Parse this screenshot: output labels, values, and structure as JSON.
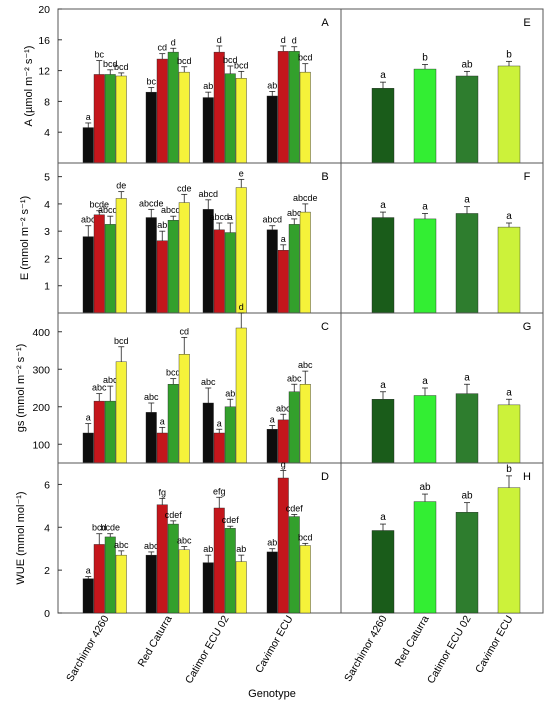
{
  "figure": {
    "xlabel": "Genotype",
    "genotypes": [
      "Sarchimor 4260",
      "Red Caturra",
      "Catimor ECU 02",
      "Cavimor ECU"
    ],
    "treatment_colors": [
      "#0d0d0d",
      "#c4161c",
      "#33a02c",
      "#f5f23a"
    ],
    "genotype_colors": [
      "#1a5c1a",
      "#33ee33",
      "#2e7d2e",
      "#ccf23a"
    ]
  },
  "chart_data": [
    {
      "panel": "A",
      "type": "bar",
      "ylabel": "A (µmol m⁻² s⁻¹)",
      "ylim": [
        0,
        20
      ],
      "yticks": [
        4,
        8,
        12,
        16,
        20
      ],
      "categories": [
        "Sarchimor 4260",
        "Red Caturra",
        "Catimor ECU 02",
        "Cavimor ECU"
      ],
      "values": [
        [
          4.6,
          11.5,
          11.5,
          11.3
        ],
        [
          9.2,
          13.5,
          14.4,
          11.8
        ],
        [
          8.5,
          14.4,
          11.6,
          11.0
        ],
        [
          8.7,
          14.5,
          14.5,
          11.8
        ]
      ],
      "errors": [
        [
          0.6,
          1.8,
          0.6,
          0.4
        ],
        [
          0.6,
          0.7,
          0.5,
          0.7
        ],
        [
          0.7,
          0.8,
          1.0,
          0.9
        ],
        [
          0.6,
          0.7,
          0.6,
          1.1
        ]
      ],
      "labels": [
        [
          "a",
          "bc",
          "bcd",
          "bcd"
        ],
        [
          "bc",
          "cd",
          "d",
          "bcd"
        ],
        [
          "ab",
          "d",
          "bcd",
          "bcd"
        ],
        [
          "ab",
          "d",
          "d",
          "bcd"
        ]
      ]
    },
    {
      "panel": "B",
      "type": "bar",
      "ylabel": "E (mmol m⁻² s⁻¹)",
      "ylim": [
        0,
        5.5
      ],
      "yticks": [
        1,
        2,
        3,
        4,
        5
      ],
      "categories": [
        "Sarchimor 4260",
        "Red Caturra",
        "Catimor ECU 02",
        "Cavimor ECU"
      ],
      "values": [
        [
          2.8,
          3.6,
          3.25,
          4.2
        ],
        [
          3.5,
          2.65,
          3.4,
          4.05
        ],
        [
          3.8,
          3.05,
          2.95,
          4.6
        ],
        [
          3.05,
          2.3,
          3.25,
          3.7
        ]
      ],
      "errors": [
        [
          0.4,
          0.15,
          0.3,
          0.25
        ],
        [
          0.3,
          0.35,
          0.15,
          0.3
        ],
        [
          0.35,
          0.25,
          0.35,
          0.3
        ],
        [
          0.15,
          0.2,
          0.2,
          0.3
        ]
      ],
      "labels": [
        [
          "abc",
          "bcde",
          "abcde",
          "de"
        ],
        [
          "abcde",
          "ab",
          "abcde",
          "cde"
        ],
        [
          "abcd",
          "abcd",
          "a",
          "e"
        ],
        [
          "abcd",
          "a",
          "abc",
          "abcde"
        ]
      ]
    },
    {
      "panel": "C",
      "type": "bar",
      "ylabel": "gs (mmol m⁻² s⁻¹)",
      "ylim": [
        50,
        450
      ],
      "yticks": [
        100,
        200,
        300,
        400
      ],
      "categories": [
        "Sarchimor 4260",
        "Red Caturra",
        "Catimor ECU 02",
        "Cavimor ECU"
      ],
      "values": [
        [
          130,
          215,
          215,
          320
        ],
        [
          185,
          130,
          260,
          340
        ],
        [
          210,
          130,
          200,
          410
        ],
        [
          140,
          165,
          240,
          260
        ]
      ],
      "errors": [
        [
          25,
          20,
          40,
          40
        ],
        [
          25,
          15,
          15,
          45
        ],
        [
          40,
          10,
          20,
          40
        ],
        [
          10,
          15,
          20,
          35
        ]
      ],
      "labels": [
        [
          "a",
          "abc",
          "abc",
          "bcd"
        ],
        [
          "abc",
          "a",
          "bcd",
          "cd"
        ],
        [
          "abc",
          "a",
          "ab",
          "d"
        ],
        [
          "a",
          "abc",
          "abc",
          "abc"
        ]
      ]
    },
    {
      "panel": "D",
      "type": "bar",
      "ylabel": "WUE (mmol mol⁻¹)",
      "ylim": [
        0,
        7
      ],
      "yticks": [
        0,
        2,
        4,
        6
      ],
      "categories": [
        "Sarchimor 4260",
        "Red Caturra",
        "Catimor ECU 02",
        "Cavimor ECU"
      ],
      "values": [
        [
          1.6,
          3.2,
          3.55,
          2.7
        ],
        [
          2.7,
          5.05,
          4.15,
          2.95
        ],
        [
          2.35,
          4.9,
          3.95,
          2.4
        ],
        [
          2.85,
          6.3,
          4.5,
          3.15
        ]
      ],
      "errors": [
        [
          0.1,
          0.5,
          0.15,
          0.2
        ],
        [
          0.15,
          0.3,
          0.15,
          0.15
        ],
        [
          0.35,
          0.5,
          0.1,
          0.3
        ],
        [
          0.15,
          0.35,
          0.1,
          0.1
        ]
      ],
      "labels": [
        [
          "a",
          "bcd",
          "bcde",
          "abc"
        ],
        [
          "abc",
          "fg",
          "cdef",
          "abc"
        ],
        [
          "ab",
          "efg",
          "cdef",
          "ab"
        ],
        [
          "ab",
          "g",
          "cdef",
          "bcd"
        ]
      ]
    },
    {
      "panel": "E",
      "type": "bar",
      "ylim": [
        0,
        20
      ],
      "yticks": [
        4,
        8,
        12,
        16,
        20
      ],
      "categories": [
        "Sarchimor 4260",
        "Red Caturra",
        "Catimor ECU 02",
        "Cavimor ECU"
      ],
      "values": [
        9.7,
        12.2,
        11.3,
        12.6
      ],
      "errors": [
        0.8,
        0.6,
        0.6,
        0.6
      ],
      "labels": [
        "a",
        "b",
        "ab",
        "b"
      ]
    },
    {
      "panel": "F",
      "type": "bar",
      "ylim": [
        0,
        5.5
      ],
      "yticks": [
        1,
        2,
        3,
        4,
        5
      ],
      "categories": [
        "Sarchimor 4260",
        "Red Caturra",
        "Catimor ECU 02",
        "Cavimor ECU"
      ],
      "values": [
        3.5,
        3.45,
        3.65,
        3.15
      ],
      "errors": [
        0.2,
        0.2,
        0.25,
        0.15
      ],
      "labels": [
        "a",
        "a",
        "a",
        "a"
      ]
    },
    {
      "panel": "G",
      "type": "bar",
      "ylim": [
        50,
        450
      ],
      "yticks": [
        100,
        200,
        300,
        400
      ],
      "categories": [
        "Sarchimor 4260",
        "Red Caturra",
        "Catimor ECU 02",
        "Cavimor ECU"
      ],
      "values": [
        220,
        230,
        235,
        205
      ],
      "errors": [
        20,
        20,
        25,
        15
      ],
      "labels": [
        "a",
        "a",
        "a",
        "a"
      ]
    },
    {
      "panel": "H",
      "type": "bar",
      "ylim": [
        0,
        7
      ],
      "yticks": [
        0,
        2,
        4,
        6
      ],
      "categories": [
        "Sarchimor 4260",
        "Red Caturra",
        "Catimor ECU 02",
        "Cavimor ECU"
      ],
      "values": [
        3.85,
        5.2,
        4.7,
        5.85
      ],
      "errors": [
        0.3,
        0.35,
        0.45,
        0.55
      ],
      "labels": [
        "a",
        "ab",
        "ab",
        "b"
      ]
    }
  ]
}
